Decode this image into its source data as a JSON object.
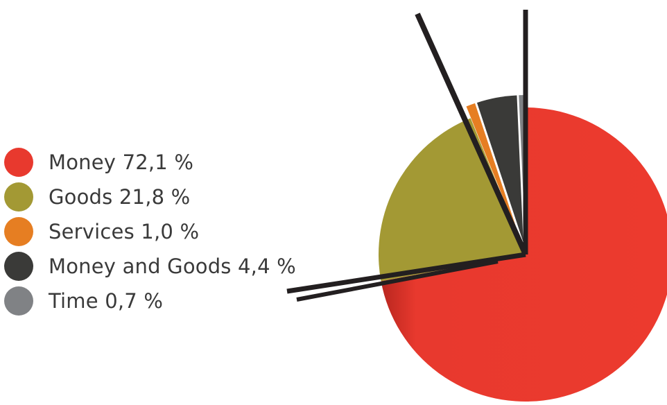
{
  "chart_data": {
    "type": "pie",
    "title": "",
    "slices": [
      {
        "label": "Money",
        "value": 72.1,
        "display": "Money 72,1 %",
        "color": "#E8392E"
      },
      {
        "label": "Goods",
        "value": 21.8,
        "display": "Goods 21,8 %",
        "color": "#A39934"
      },
      {
        "label": "Services",
        "value": 1.0,
        "display": "Services 1,0 %",
        "color": "#E67E22"
      },
      {
        "label": "Money and Goods",
        "value": 4.4,
        "display": "Money and Goods 4,4 %",
        "color": "#3A3A38"
      },
      {
        "label": "Time",
        "value": 0.7,
        "display": "Time 0,7 %",
        "color": "#808285"
      }
    ],
    "legend_position": "left",
    "exploded_slices": [
      "Services",
      "Money and Goods",
      "Time"
    ],
    "separator_color": "#231F20"
  }
}
